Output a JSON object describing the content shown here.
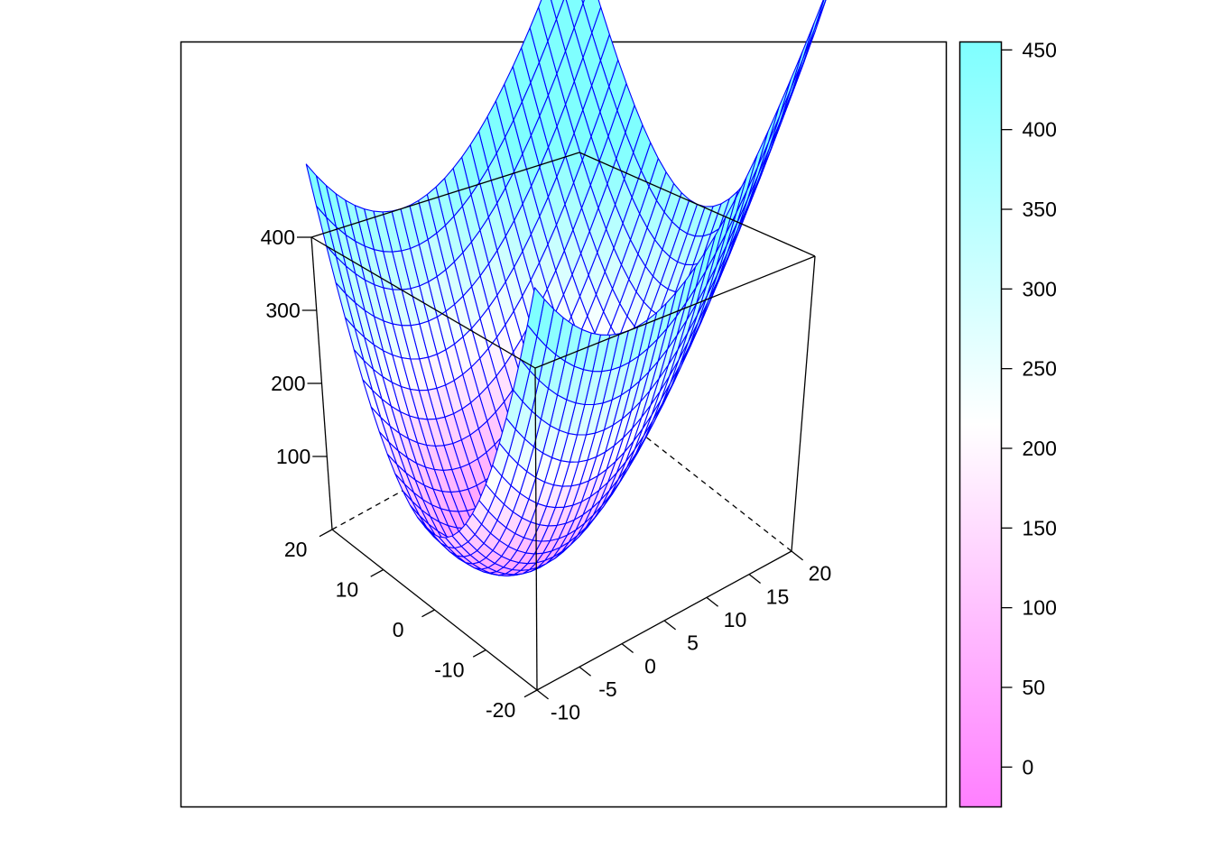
{
  "chart_data": {
    "type": "surface3d",
    "function": "z = x^2 + y^2",
    "x_range": [
      -10,
      20
    ],
    "y_range": [
      -20,
      20
    ],
    "z_range": [
      0,
      400
    ],
    "x_ticks": [
      "-10",
      "-5",
      "0",
      "5",
      "10",
      "15",
      "20"
    ],
    "y_ticks": [
      "-20",
      "-10",
      "0",
      "10",
      "20"
    ],
    "z_ticks": [
      "100",
      "200",
      "300",
      "400"
    ],
    "grid_resolution": 30,
    "wireframe_color": "#0000FF",
    "colorbar": {
      "ticks": [
        "0",
        "50",
        "100",
        "150",
        "200",
        "250",
        "300",
        "350",
        "400",
        "450"
      ],
      "range": [
        -25,
        455
      ],
      "colors": {
        "low": "#FF7FFF",
        "mid": "#FFFFFF",
        "high": "#7FFFFF"
      }
    }
  }
}
